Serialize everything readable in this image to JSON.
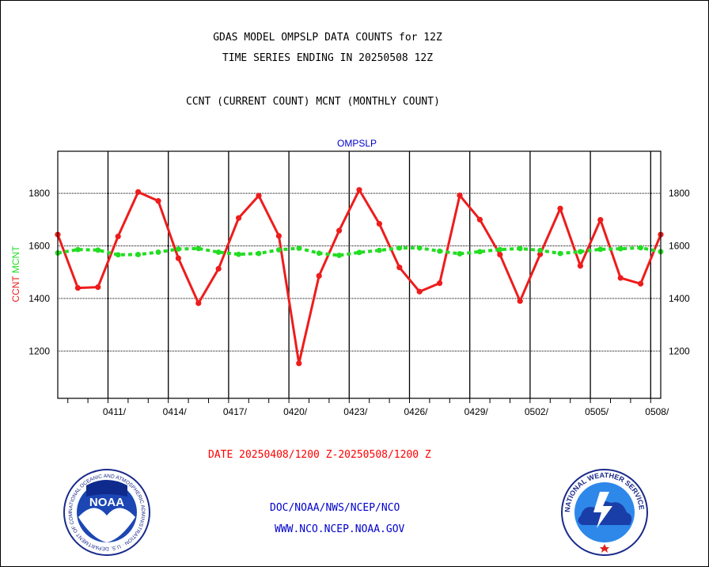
{
  "header": {
    "title_line1": "GDAS MODEL OMPSLP DATA COUNTS for 12Z",
    "title_line2": "TIME SERIES ENDING IN 20250508 12Z",
    "subtitle": "CCNT (CURRENT COUNT) MCNT (MONTHLY COUNT)"
  },
  "footer": {
    "date_range": "DATE 20250408/1200 Z-20250508/1200 Z",
    "org_line": "DOC/NOAA/NWS/NCEP/NCO",
    "url_line": "WWW.NCO.NCEP.NOAA.GOV"
  },
  "logos": {
    "noaa_text": "NOAA",
    "noaa_ring": "NATIONAL OCEANIC AND ATMOSPHERIC ADMINISTRATION · U.S. DEPARTMENT OF COMMERCE ·",
    "nws_ring": "NATIONAL WEATHER SERVICE"
  },
  "colors": {
    "ccnt": "#ee1c1c",
    "mcnt": "#22dd22",
    "grid": "#000000",
    "footer_text": "#0000cc",
    "date_text": "#ff0000"
  },
  "chart_data": {
    "type": "line",
    "title": "OMPSLP",
    "ylabel_parts": [
      {
        "text": "CCNT",
        "color": "#ee1c1c"
      },
      {
        "text": "MCNT",
        "color": "#22dd22"
      }
    ],
    "ylim": [
      1020,
      1960
    ],
    "yticks": [
      1200,
      1400,
      1600,
      1800
    ],
    "x_start": "2025-04-08T12",
    "x_end": "2025-05-08T12",
    "xticks": [
      "0411/",
      "0414/",
      "0417/",
      "0420/",
      "0423/",
      "0426/",
      "0429/",
      "0502/",
      "0505/",
      "0508/"
    ],
    "xtick_dates": [
      "2025-04-11",
      "2025-04-14",
      "2025-04-17",
      "2025-04-20",
      "2025-04-23",
      "2025-04-26",
      "2025-04-29",
      "2025-05-02",
      "2025-05-05",
      "2025-05-08"
    ],
    "grid": true,
    "x": [
      "2025-04-08T12",
      "2025-04-09T12",
      "2025-04-10T12",
      "2025-04-11T12",
      "2025-04-12T12",
      "2025-04-13T12",
      "2025-04-14T12",
      "2025-04-15T12",
      "2025-04-16T12",
      "2025-04-17T12",
      "2025-04-18T12",
      "2025-04-19T12",
      "2025-04-20T12",
      "2025-04-21T12",
      "2025-04-22T12",
      "2025-04-23T12",
      "2025-04-24T12",
      "2025-04-25T12",
      "2025-04-26T12",
      "2025-04-27T12",
      "2025-04-28T12",
      "2025-04-29T12",
      "2025-04-30T12",
      "2025-05-01T12",
      "2025-05-02T12",
      "2025-05-03T12",
      "2025-05-04T12",
      "2025-05-05T12",
      "2025-05-06T12",
      "2025-05-07T12",
      "2025-05-08T12"
    ],
    "series": [
      {
        "name": "CCNT",
        "color": "#ee1c1c",
        "values": [
          1643,
          1440,
          1443,
          1636,
          1805,
          1771,
          1553,
          1382,
          1513,
          1706,
          1791,
          1638,
          1153,
          1486,
          1658,
          1813,
          1684,
          1518,
          1426,
          1458,
          1792,
          1700,
          1567,
          1390,
          1568,
          1742,
          1524,
          1699,
          1478,
          1456,
          1643
        ]
      },
      {
        "values": [
          1573,
          1586,
          1584,
          1566,
          1567,
          1576,
          1588,
          1590,
          1576,
          1568,
          1571,
          1585,
          1591,
          1572,
          1564,
          1575,
          1583,
          1592,
          1592,
          1580,
          1570,
          1578,
          1586,
          1590,
          1583,
          1571,
          1578,
          1587,
          1589,
          1593,
          1578
        ]
      }
    ]
  }
}
